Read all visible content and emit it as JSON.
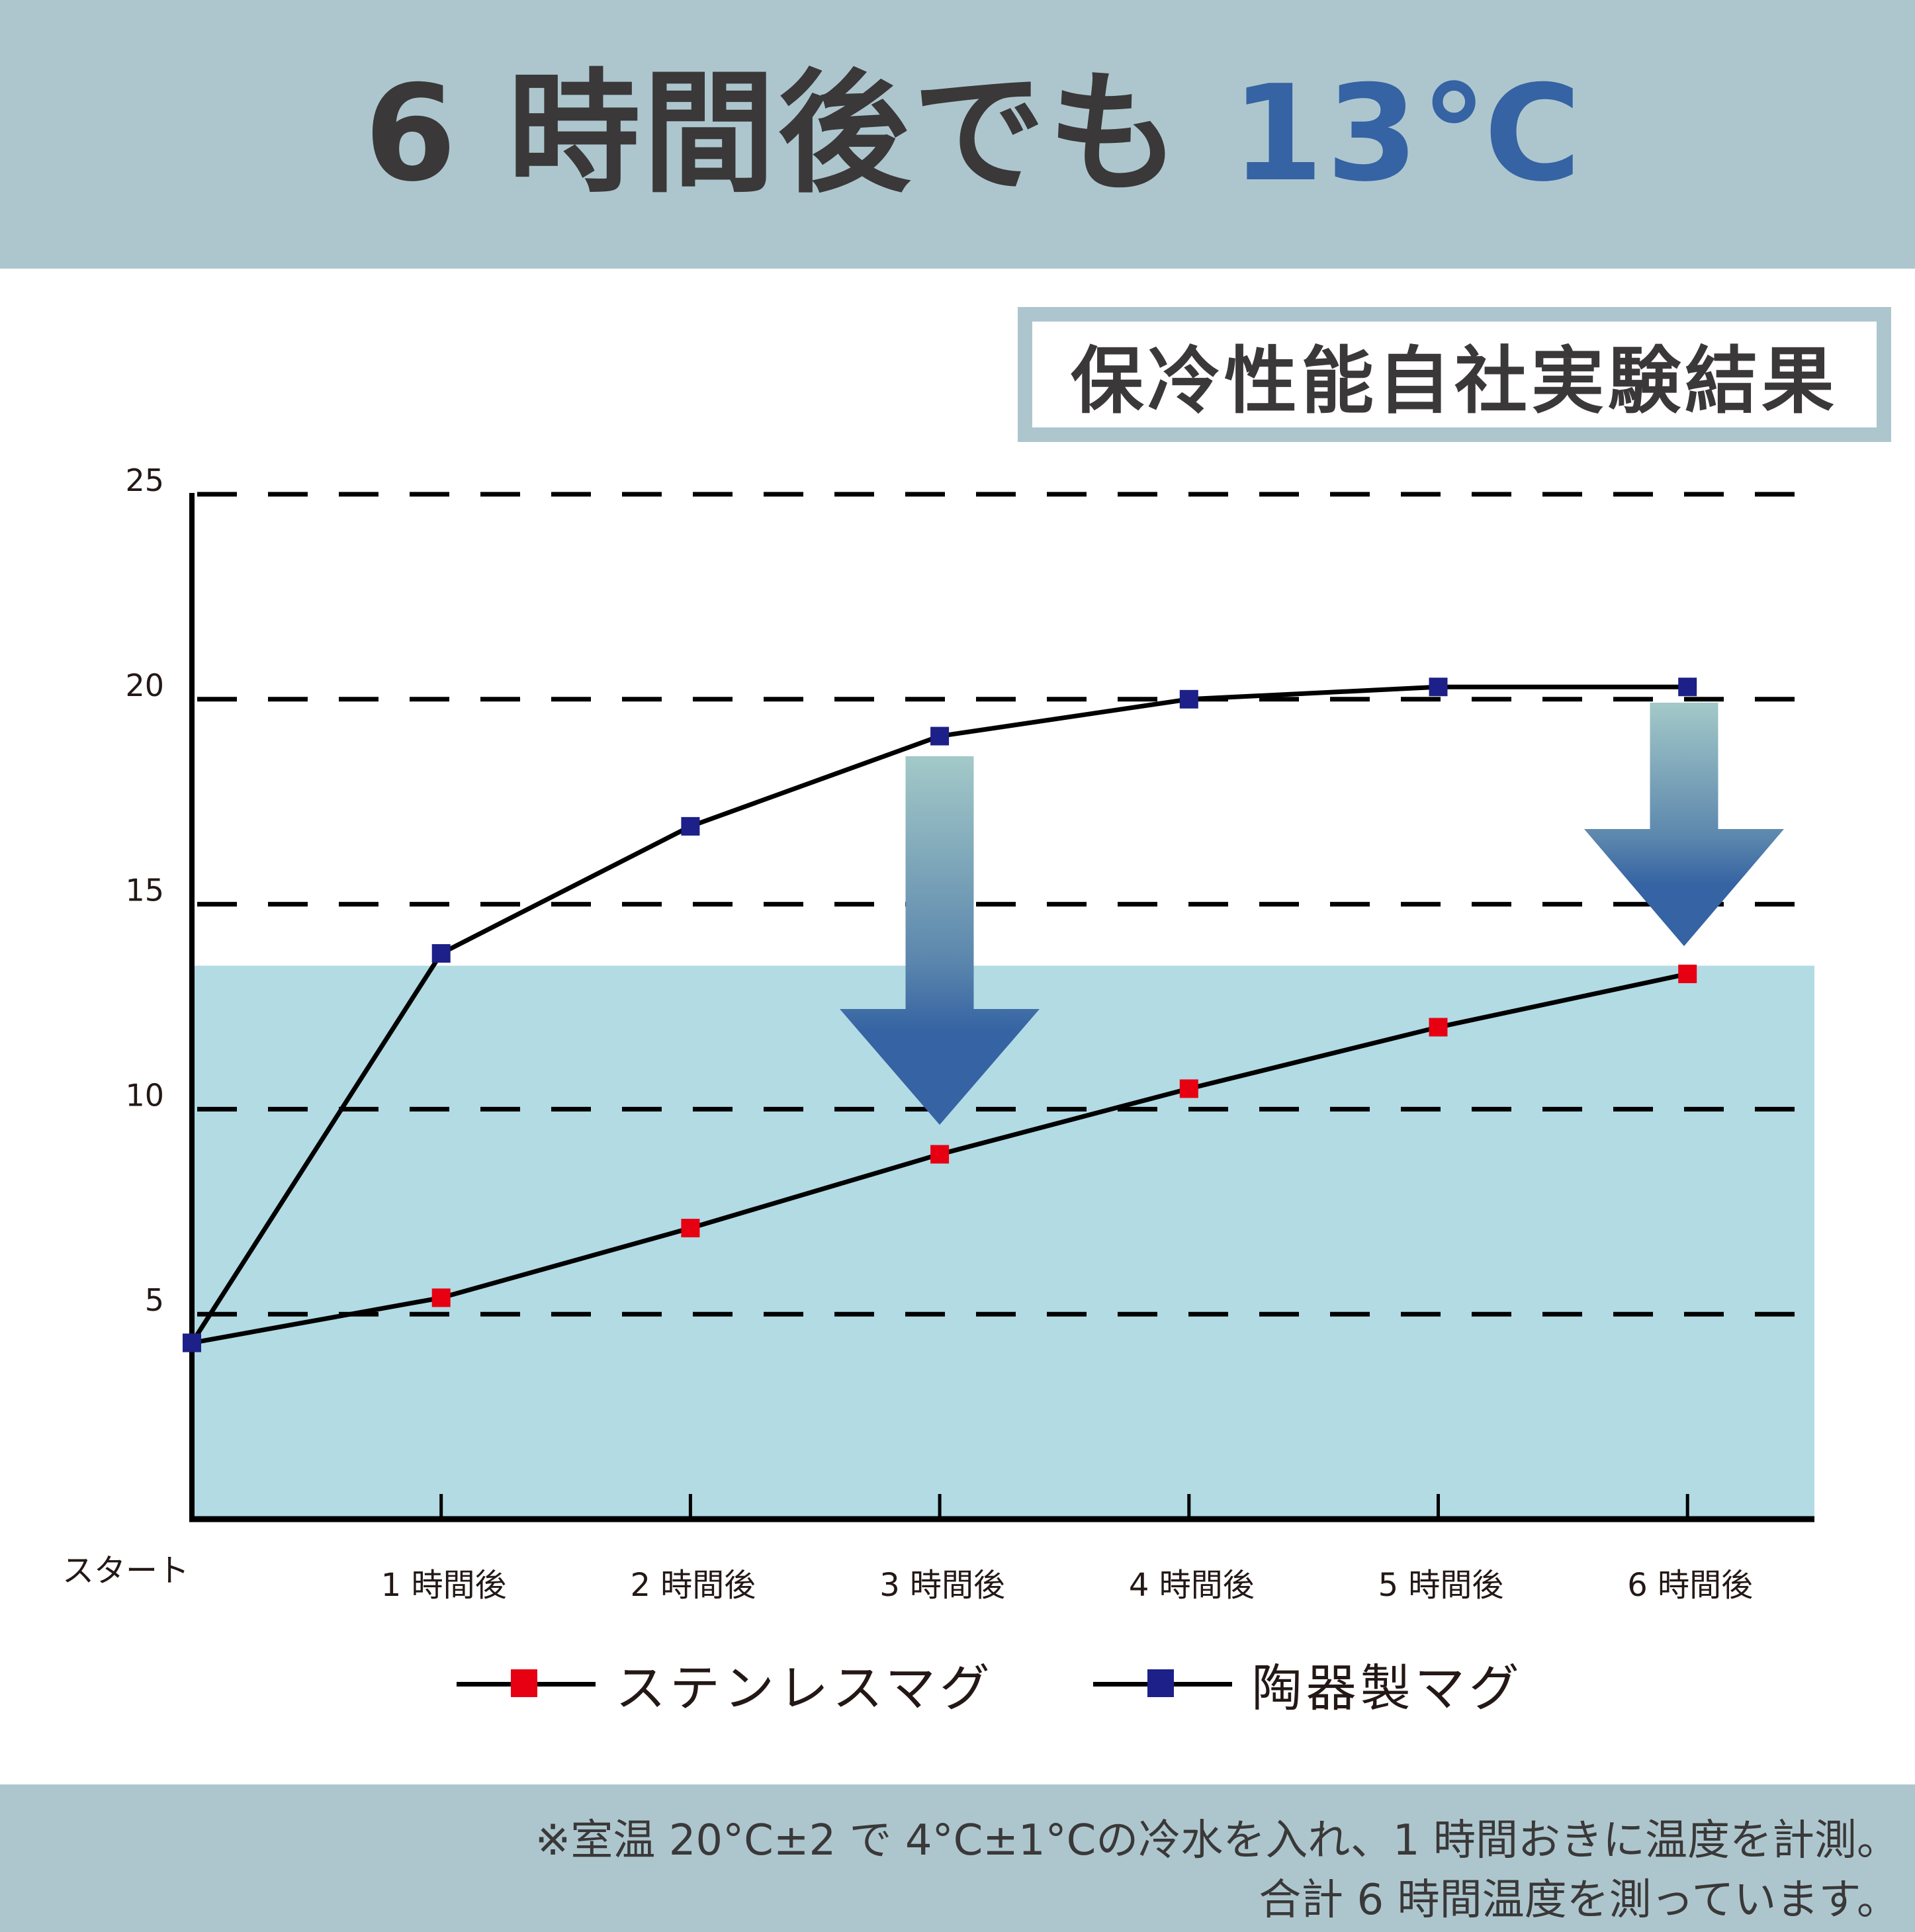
{
  "header": {
    "title_prefix": "6 時間後でも ",
    "title_highlight": "13℃",
    "background": "#adc6ce",
    "highlight_color": "#3563a3"
  },
  "badge": {
    "label": "保冷性能自社実験結果"
  },
  "chart_data": {
    "type": "line",
    "title": "保冷性能自社実験結果",
    "xlabel": "",
    "ylabel": "",
    "categories": [
      "スタート",
      "1 時間後",
      "2 時間後",
      "3 時間後",
      "4 時間後",
      "5 時間後",
      "6 時間後"
    ],
    "y_ticks": [
      "25",
      "20",
      "15",
      "10",
      "5"
    ],
    "ylim": [
      0,
      25
    ],
    "grid": "dashed horizontal",
    "legend_position": "bottom",
    "series": [
      {
        "name": "ステンレスマグ",
        "marker_color": "#e60012",
        "values": [
          4.3,
          5.4,
          7.1,
          8.9,
          10.5,
          12.0,
          13.3
        ]
      },
      {
        "name": "陶器製マグ",
        "marker_color": "#1d2088",
        "values": [
          4.3,
          13.8,
          16.9,
          19.1,
          20.0,
          20.3,
          20.3
        ]
      }
    ],
    "highlight_band": {
      "from": 0,
      "to": 13.5,
      "color": "#b2dbe4"
    },
    "annotations": [
      {
        "type": "down-arrow",
        "at": "3 時間後"
      },
      {
        "type": "down-arrow",
        "at": "6 時間後"
      }
    ]
  },
  "legend": {
    "items": [
      {
        "label": "ステンレスマグ",
        "color": "#e60012"
      },
      {
        "label": "陶器製マグ",
        "color": "#1d2088"
      }
    ]
  },
  "footer": {
    "line1": "※室温 20°C±2 で 4°C±1°Cの冷水を入れ、1 時間おきに温度を計測。",
    "line2": "合計 6 時間温度を測っています。"
  }
}
